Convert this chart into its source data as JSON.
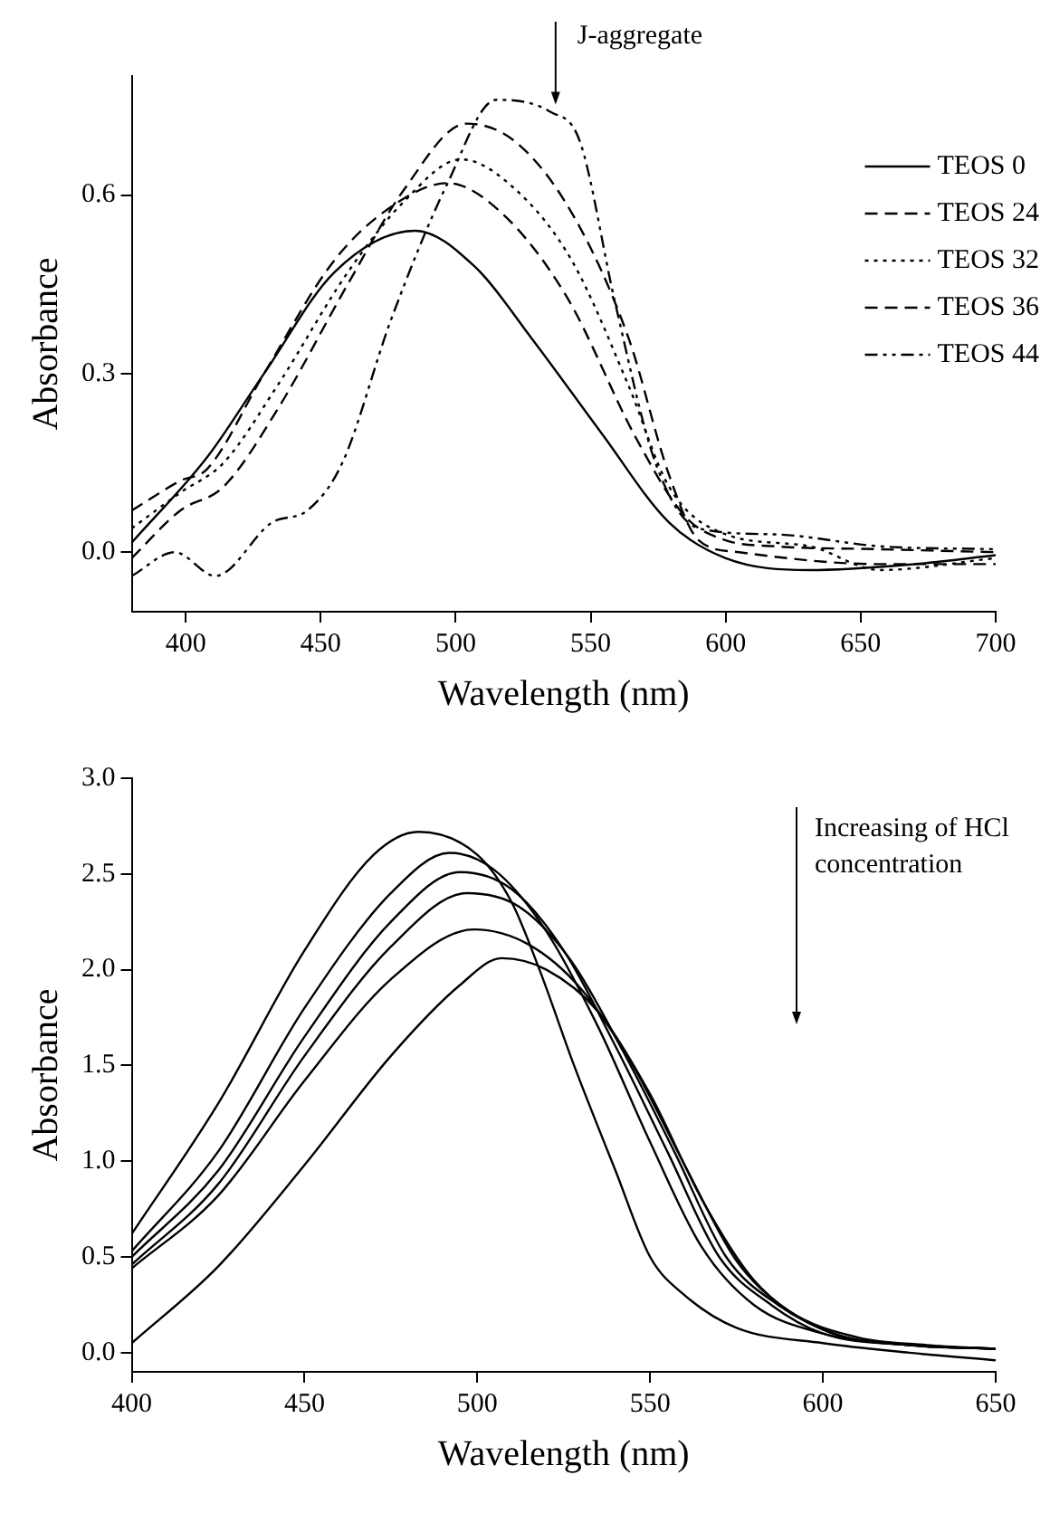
{
  "chart_data": [
    {
      "type": "line",
      "xlabel": "Wavelength (nm)",
      "ylabel": "Absorbance",
      "xlim": [
        380,
        700
      ],
      "xticks": [
        400,
        450,
        500,
        550,
        600,
        650,
        700
      ],
      "ylim": [
        -0.1,
        0.8
      ],
      "yticks": [
        {
          "value": 0,
          "label": "0.0"
        },
        {
          "value": 0.3,
          "label": "0.3"
        },
        {
          "value": 0.6,
          "label": "0.6"
        }
      ],
      "grid": false,
      "legend": "top right",
      "marker": "none",
      "annotations": [
        {
          "text": "J-aggregate",
          "x": 537,
          "y": 0.74
        }
      ],
      "series": [
        {
          "name": "TEOS 0",
          "color": "#000000",
          "line_style": "solid",
          "x": [
            380,
            408,
            429,
            455,
            485,
            507,
            528,
            554,
            579,
            600,
            631,
            670,
            700
          ],
          "values": [
            0.016,
            0.16,
            0.3,
            0.47,
            0.54,
            0.48,
            0.36,
            0.2,
            0.05,
            -0.01,
            -0.03,
            -0.02,
            -0.005
          ]
        },
        {
          "name": "TEOS 24",
          "color": "#000000",
          "line_style": "dashed",
          "x": [
            380,
            398,
            408,
            429,
            455,
            476,
            497,
            517,
            541,
            567,
            585,
            600,
            618,
            657,
            700
          ],
          "values": [
            0.07,
            0.12,
            0.14,
            0.3,
            0.49,
            0.58,
            0.62,
            0.57,
            0.43,
            0.19,
            0.06,
            0.02,
            0.01,
            0.005,
            0.0
          ]
        },
        {
          "name": "TEOS 32",
          "color": "#000000",
          "line_style": "dotted",
          "x": [
            380,
            398,
            414,
            434,
            460,
            481,
            502,
            522,
            543,
            564,
            579,
            600,
            631,
            657,
            700
          ],
          "values": [
            0.04,
            0.1,
            0.15,
            0.28,
            0.47,
            0.59,
            0.66,
            0.61,
            0.49,
            0.28,
            0.11,
            0.03,
            0.01,
            -0.03,
            -0.01
          ]
        },
        {
          "name": "TEOS 36",
          "color": "#000000",
          "line_style": "dashed",
          "x": [
            380,
            398,
            414,
            434,
            460,
            481,
            504,
            522,
            543,
            564,
            579,
            590,
            605,
            657,
            700
          ],
          "values": [
            -0.01,
            0.07,
            0.11,
            0.24,
            0.45,
            0.61,
            0.72,
            0.69,
            0.57,
            0.36,
            0.13,
            0.02,
            0.0,
            -0.02,
            -0.02
          ]
        },
        {
          "name": "TEOS 44",
          "color": "#000000",
          "line_style": "dashdot",
          "x": [
            380,
            396,
            411,
            432,
            445,
            458,
            476,
            497,
            515,
            535,
            546,
            559,
            574,
            590,
            618,
            657,
            700
          ],
          "values": [
            -0.04,
            0.0,
            -0.04,
            0.05,
            0.07,
            0.15,
            0.39,
            0.62,
            0.76,
            0.74,
            0.69,
            0.42,
            0.15,
            0.04,
            0.03,
            0.01,
            0.005
          ]
        }
      ]
    },
    {
      "type": "line",
      "xlabel": "Wavelength (nm)",
      "ylabel": "Absorbance",
      "xlim": [
        400,
        650
      ],
      "xticks": [
        400,
        450,
        500,
        550,
        600,
        650
      ],
      "ylim": [
        -0.1,
        3.0
      ],
      "yticks": [
        {
          "value": 0,
          "label": "0.0"
        },
        {
          "value": 0.5,
          "label": "0.5"
        },
        {
          "value": 1,
          "label": "1.0"
        },
        {
          "value": 1.5,
          "label": "1.5"
        },
        {
          "value": 2,
          "label": "2.0"
        },
        {
          "value": 2.5,
          "label": "2.5"
        },
        {
          "value": 3,
          "label": "3.0"
        }
      ],
      "grid": false,
      "legend": false,
      "marker": "none",
      "annotations": [
        "Increasing of HCl concentration"
      ],
      "series": [
        {
          "color": "#000000",
          "x": [
            400,
            425,
            450,
            470,
            483,
            500,
            510,
            518,
            528,
            540,
            550,
            560,
            575,
            600,
            625,
            650
          ],
          "values": [
            0.62,
            1.3,
            2.1,
            2.6,
            2.72,
            2.6,
            2.35,
            2.0,
            1.5,
            0.95,
            0.5,
            0.3,
            0.13,
            0.05,
            0.0,
            -0.04
          ]
        },
        {
          "color": "#000000",
          "x": [
            400,
            425,
            450,
            475,
            492,
            505,
            520,
            535,
            550,
            565,
            580,
            600,
            625,
            650
          ],
          "values": [
            0.53,
            1.05,
            1.8,
            2.4,
            2.61,
            2.52,
            2.2,
            1.7,
            1.1,
            0.55,
            0.25,
            0.1,
            0.04,
            0.02
          ]
        },
        {
          "color": "#000000",
          "x": [
            400,
            425,
            450,
            475,
            495,
            510,
            525,
            540,
            555,
            570,
            585,
            600,
            625,
            650
          ],
          "values": [
            0.5,
            0.95,
            1.65,
            2.25,
            2.51,
            2.42,
            2.1,
            1.6,
            1.05,
            0.5,
            0.25,
            0.1,
            0.04,
            0.02
          ]
        },
        {
          "color": "#000000",
          "x": [
            400,
            425,
            450,
            475,
            497,
            512,
            527,
            542,
            557,
            572,
            587,
            605,
            625,
            650
          ],
          "values": [
            0.46,
            0.88,
            1.55,
            2.12,
            2.4,
            2.33,
            2.05,
            1.58,
            1.05,
            0.5,
            0.25,
            0.09,
            0.04,
            0.02
          ]
        },
        {
          "color": "#000000",
          "x": [
            400,
            425,
            450,
            475,
            499,
            515,
            530,
            545,
            560,
            575,
            590,
            610,
            630,
            650
          ],
          "values": [
            0.44,
            0.82,
            1.42,
            1.95,
            2.21,
            2.13,
            1.9,
            1.5,
            0.98,
            0.48,
            0.22,
            0.08,
            0.04,
            0.02
          ]
        },
        {
          "color": "#000000",
          "x": [
            400,
            425,
            450,
            475,
            495,
            507,
            520,
            535,
            550,
            565,
            580,
            600,
            625,
            650
          ],
          "values": [
            0.05,
            0.45,
            0.98,
            1.55,
            1.92,
            2.06,
            2.0,
            1.78,
            1.35,
            0.8,
            0.38,
            0.12,
            0.04,
            0.02
          ]
        }
      ]
    }
  ]
}
